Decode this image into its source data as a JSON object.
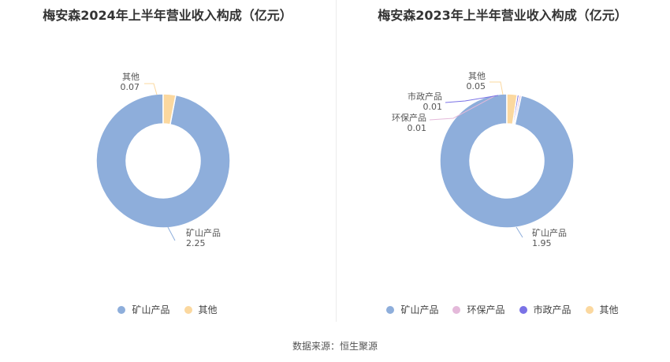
{
  "colors": {
    "矿山产品": "#8eaedb",
    "其他": "#fbd89f",
    "环保产品": "#e4b9da",
    "市政产品": "#7a72e6"
  },
  "chart_data": [
    {
      "type": "pie",
      "title": "梅安森2024年上半年营业收入构成（亿元）",
      "slices": [
        {
          "name": "矿山产品",
          "value": 2.25
        },
        {
          "name": "其他",
          "value": 0.07
        }
      ],
      "legend": [
        "矿山产品",
        "其他"
      ],
      "legend_position": "bottom"
    },
    {
      "type": "pie",
      "title": "梅安森2023年上半年营业收入构成（亿元）",
      "slices": [
        {
          "name": "矿山产品",
          "value": 1.95
        },
        {
          "name": "环保产品",
          "value": 0.01
        },
        {
          "name": "市政产品",
          "value": 0.01
        },
        {
          "name": "其他",
          "value": 0.05
        }
      ],
      "legend": [
        "矿山产品",
        "环保产品",
        "市政产品",
        "其他"
      ],
      "legend_position": "bottom"
    }
  ],
  "footer": {
    "source": "数据来源：恒生聚源"
  }
}
